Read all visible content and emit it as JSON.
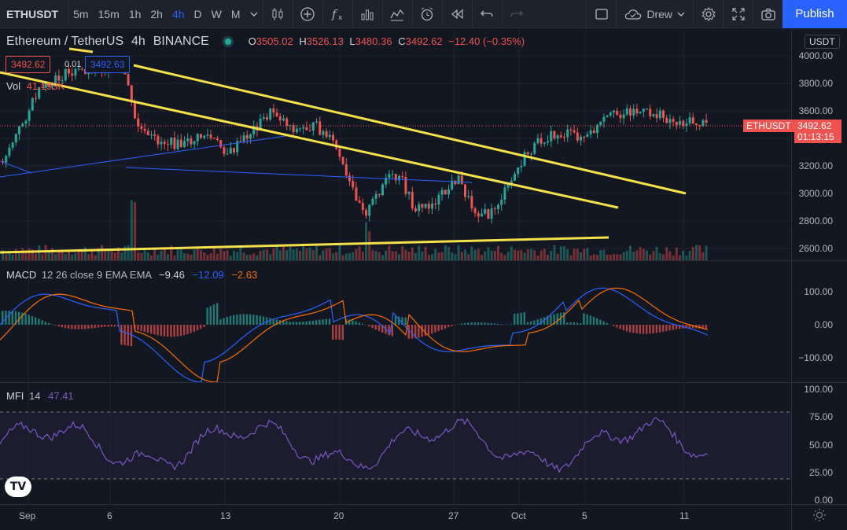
{
  "toolbar": {
    "symbol": "ETHUSDT",
    "timeframes": [
      "5m",
      "15m",
      "1h",
      "2h",
      "4h",
      "D",
      "W",
      "M"
    ],
    "active_timeframe": "4h",
    "user": "Drew",
    "publish": "Publish"
  },
  "legend": {
    "pair": "Ethereum / TetherUS",
    "interval": "4h",
    "exchange": "BINANCE",
    "o_label": "O",
    "o": "3505.02",
    "h_label": "H",
    "h": "3526.13",
    "l_label": "L",
    "l": "3480.36",
    "c_label": "C",
    "c": "3492.62",
    "change": "−12.40 (−0.35%)",
    "bid": "3492.62",
    "spread": "0.01",
    "ask": "3492.63",
    "vol_label": "Vol",
    "vol_value": "41.193K"
  },
  "price_axis": {
    "currency": "USDT",
    "labels": [
      "4000.00",
      "3800.00",
      "3600.00",
      "3400.00",
      "3200.00",
      "3000.00",
      "2800.00",
      "2600.00"
    ],
    "last_symbol": "ETHUSDT",
    "last_price": "3492.62",
    "countdown": "01:13:15"
  },
  "macd": {
    "label": "MACD",
    "params": "12 26 close 9 EMA EMA",
    "hist": "−9.46",
    "macd": "−12.09",
    "signal": "−2.63",
    "axis": [
      "100.00",
      "0.00",
      "−100.00"
    ]
  },
  "mfi": {
    "label": "MFI",
    "params": "14",
    "value": "47.41",
    "axis": [
      "100.00",
      "75.00",
      "50.00",
      "25.00",
      "0.00"
    ]
  },
  "time_axis": [
    "Sep",
    "6",
    "13",
    "20",
    "27",
    "Oct",
    "5",
    "11"
  ],
  "colors": {
    "up": "#26a69a",
    "down": "#ef5350",
    "trendline": "#f5e04a",
    "ma_line": "#2962ff",
    "macd_line": "#2962ff",
    "signal_line": "#ff6d00",
    "mfi_line": "#7e57c2",
    "accent": "#2962ff"
  }
}
